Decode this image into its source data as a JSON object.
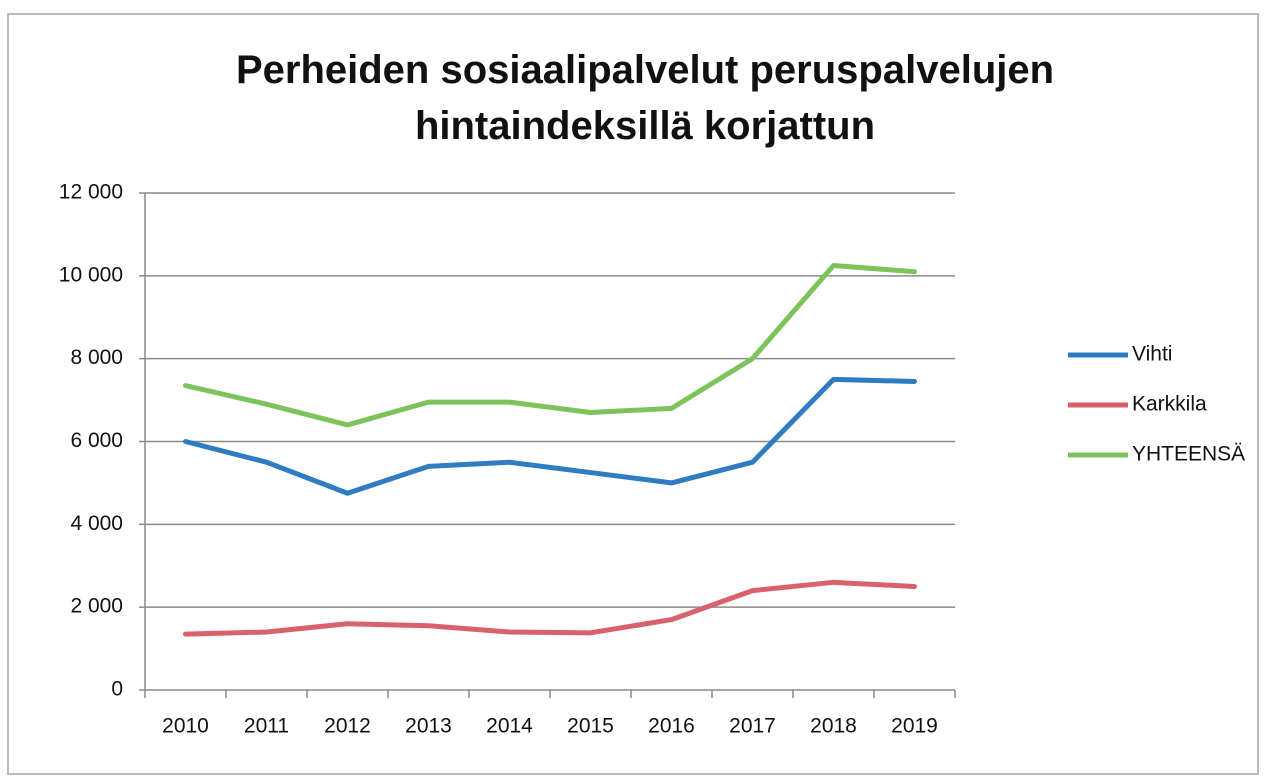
{
  "chart_data": {
    "type": "line",
    "title": "Perheiden sosiaalipalvelut peruspalvelujen hintaindeksillä korjattun",
    "categories": [
      "2010",
      "2011",
      "2012",
      "2013",
      "2014",
      "2015",
      "2016",
      "2017",
      "2018",
      "2019"
    ],
    "series": [
      {
        "name": "Vihti",
        "color": "#2f7cc3",
        "values": [
          6000,
          5500,
          4750,
          5400,
          5500,
          5250,
          5000,
          5500,
          7500,
          7450
        ]
      },
      {
        "name": "Karkkila",
        "color": "#d8616b",
        "values": [
          1350,
          1400,
          1600,
          1550,
          1400,
          1380,
          1700,
          2400,
          2600,
          2500
        ]
      },
      {
        "name": "YHTEENSÄ",
        "color": "#7dc35b",
        "values": [
          7350,
          6900,
          6400,
          6950,
          6950,
          6700,
          6800,
          8000,
          10250,
          10100
        ]
      }
    ],
    "ylim": [
      0,
      12000
    ],
    "yticks": [
      {
        "value": 0,
        "label": "0"
      },
      {
        "value": 2000,
        "label": "2 000"
      },
      {
        "value": 4000,
        "label": "4 000"
      },
      {
        "value": 6000,
        "label": "6 000"
      },
      {
        "value": 8000,
        "label": "8 000"
      },
      {
        "value": 10000,
        "label": "10 000"
      },
      {
        "value": 12000,
        "label": "12 000"
      }
    ],
    "grid": true,
    "legend": "right"
  }
}
